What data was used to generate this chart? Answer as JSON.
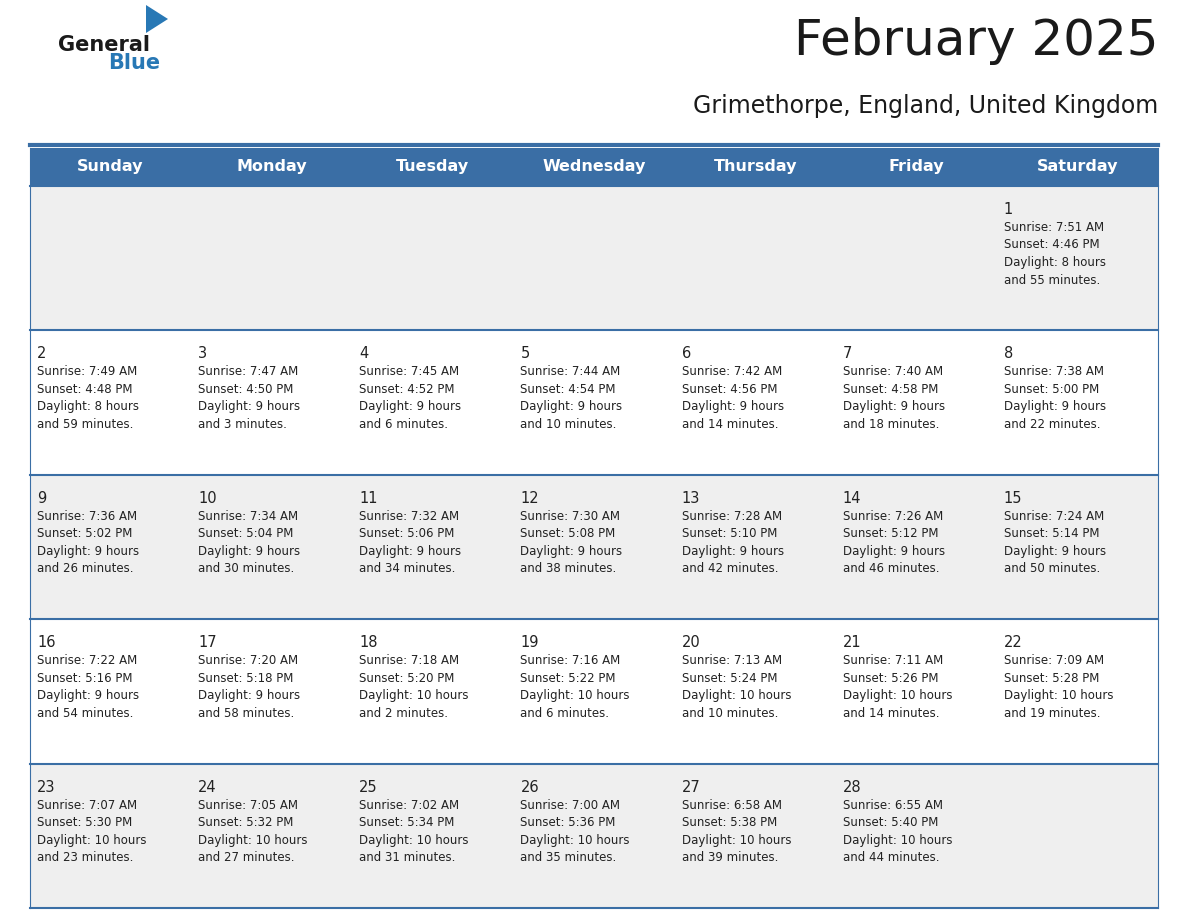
{
  "title": "February 2025",
  "subtitle": "Grimethorpe, England, United Kingdom",
  "days_of_week": [
    "Sunday",
    "Monday",
    "Tuesday",
    "Wednesday",
    "Thursday",
    "Friday",
    "Saturday"
  ],
  "header_bg": "#3a6ea5",
  "header_text": "#ffffff",
  "row_bg_light": "#efefef",
  "row_bg_white": "#ffffff",
  "cell_border_color": "#3a6ea5",
  "day_num_color": "#222222",
  "info_color": "#222222",
  "title_color": "#1a1a1a",
  "subtitle_color": "#1a1a1a",
  "logo_general_color": "#1a1a1a",
  "logo_blue_color": "#2878b5",
  "calendar_data": [
    [
      null,
      null,
      null,
      null,
      null,
      null,
      {
        "day": 1,
        "sunrise": "7:51 AM",
        "sunset": "4:46 PM",
        "daylight_line1": "Daylight: 8 hours",
        "daylight_line2": "and 55 minutes."
      }
    ],
    [
      {
        "day": 2,
        "sunrise": "7:49 AM",
        "sunset": "4:48 PM",
        "daylight_line1": "Daylight: 8 hours",
        "daylight_line2": "and 59 minutes."
      },
      {
        "day": 3,
        "sunrise": "7:47 AM",
        "sunset": "4:50 PM",
        "daylight_line1": "Daylight: 9 hours",
        "daylight_line2": "and 3 minutes."
      },
      {
        "day": 4,
        "sunrise": "7:45 AM",
        "sunset": "4:52 PM",
        "daylight_line1": "Daylight: 9 hours",
        "daylight_line2": "and 6 minutes."
      },
      {
        "day": 5,
        "sunrise": "7:44 AM",
        "sunset": "4:54 PM",
        "daylight_line1": "Daylight: 9 hours",
        "daylight_line2": "and 10 minutes."
      },
      {
        "day": 6,
        "sunrise": "7:42 AM",
        "sunset": "4:56 PM",
        "daylight_line1": "Daylight: 9 hours",
        "daylight_line2": "and 14 minutes."
      },
      {
        "day": 7,
        "sunrise": "7:40 AM",
        "sunset": "4:58 PM",
        "daylight_line1": "Daylight: 9 hours",
        "daylight_line2": "and 18 minutes."
      },
      {
        "day": 8,
        "sunrise": "7:38 AM",
        "sunset": "5:00 PM",
        "daylight_line1": "Daylight: 9 hours",
        "daylight_line2": "and 22 minutes."
      }
    ],
    [
      {
        "day": 9,
        "sunrise": "7:36 AM",
        "sunset": "5:02 PM",
        "daylight_line1": "Daylight: 9 hours",
        "daylight_line2": "and 26 minutes."
      },
      {
        "day": 10,
        "sunrise": "7:34 AM",
        "sunset": "5:04 PM",
        "daylight_line1": "Daylight: 9 hours",
        "daylight_line2": "and 30 minutes."
      },
      {
        "day": 11,
        "sunrise": "7:32 AM",
        "sunset": "5:06 PM",
        "daylight_line1": "Daylight: 9 hours",
        "daylight_line2": "and 34 minutes."
      },
      {
        "day": 12,
        "sunrise": "7:30 AM",
        "sunset": "5:08 PM",
        "daylight_line1": "Daylight: 9 hours",
        "daylight_line2": "and 38 minutes."
      },
      {
        "day": 13,
        "sunrise": "7:28 AM",
        "sunset": "5:10 PM",
        "daylight_line1": "Daylight: 9 hours",
        "daylight_line2": "and 42 minutes."
      },
      {
        "day": 14,
        "sunrise": "7:26 AM",
        "sunset": "5:12 PM",
        "daylight_line1": "Daylight: 9 hours",
        "daylight_line2": "and 46 minutes."
      },
      {
        "day": 15,
        "sunrise": "7:24 AM",
        "sunset": "5:14 PM",
        "daylight_line1": "Daylight: 9 hours",
        "daylight_line2": "and 50 minutes."
      }
    ],
    [
      {
        "day": 16,
        "sunrise": "7:22 AM",
        "sunset": "5:16 PM",
        "daylight_line1": "Daylight: 9 hours",
        "daylight_line2": "and 54 minutes."
      },
      {
        "day": 17,
        "sunrise": "7:20 AM",
        "sunset": "5:18 PM",
        "daylight_line1": "Daylight: 9 hours",
        "daylight_line2": "and 58 minutes."
      },
      {
        "day": 18,
        "sunrise": "7:18 AM",
        "sunset": "5:20 PM",
        "daylight_line1": "Daylight: 10 hours",
        "daylight_line2": "and 2 minutes."
      },
      {
        "day": 19,
        "sunrise": "7:16 AM",
        "sunset": "5:22 PM",
        "daylight_line1": "Daylight: 10 hours",
        "daylight_line2": "and 6 minutes."
      },
      {
        "day": 20,
        "sunrise": "7:13 AM",
        "sunset": "5:24 PM",
        "daylight_line1": "Daylight: 10 hours",
        "daylight_line2": "and 10 minutes."
      },
      {
        "day": 21,
        "sunrise": "7:11 AM",
        "sunset": "5:26 PM",
        "daylight_line1": "Daylight: 10 hours",
        "daylight_line2": "and 14 minutes."
      },
      {
        "day": 22,
        "sunrise": "7:09 AM",
        "sunset": "5:28 PM",
        "daylight_line1": "Daylight: 10 hours",
        "daylight_line2": "and 19 minutes."
      }
    ],
    [
      {
        "day": 23,
        "sunrise": "7:07 AM",
        "sunset": "5:30 PM",
        "daylight_line1": "Daylight: 10 hours",
        "daylight_line2": "and 23 minutes."
      },
      {
        "day": 24,
        "sunrise": "7:05 AM",
        "sunset": "5:32 PM",
        "daylight_line1": "Daylight: 10 hours",
        "daylight_line2": "and 27 minutes."
      },
      {
        "day": 25,
        "sunrise": "7:02 AM",
        "sunset": "5:34 PM",
        "daylight_line1": "Daylight: 10 hours",
        "daylight_line2": "and 31 minutes."
      },
      {
        "day": 26,
        "sunrise": "7:00 AM",
        "sunset": "5:36 PM",
        "daylight_line1": "Daylight: 10 hours",
        "daylight_line2": "and 35 minutes."
      },
      {
        "day": 27,
        "sunrise": "6:58 AM",
        "sunset": "5:38 PM",
        "daylight_line1": "Daylight: 10 hours",
        "daylight_line2": "and 39 minutes."
      },
      {
        "day": 28,
        "sunrise": "6:55 AM",
        "sunset": "5:40 PM",
        "daylight_line1": "Daylight: 10 hours",
        "daylight_line2": "and 44 minutes."
      },
      null
    ]
  ]
}
